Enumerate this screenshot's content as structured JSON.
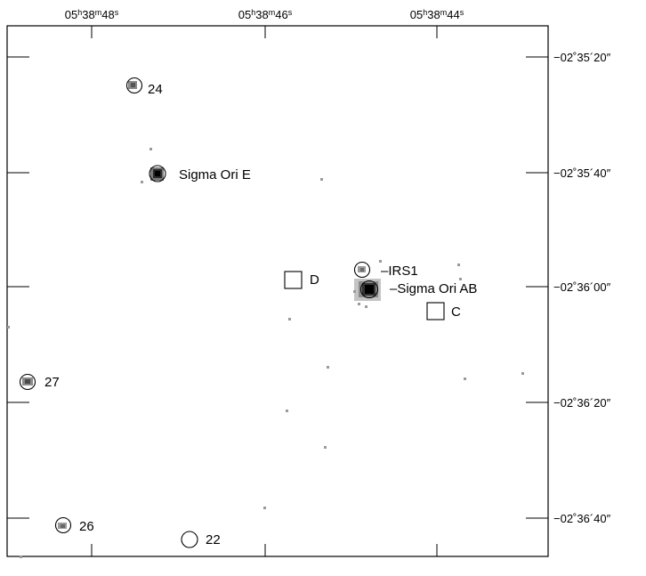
{
  "ra_ticks": [
    {
      "h": "05",
      "m": "38",
      "s": "48"
    },
    {
      "h": "05",
      "m": "38",
      "s": "46"
    },
    {
      "h": "05",
      "m": "38",
      "s": "44"
    }
  ],
  "dec_ticks": [
    "−02˚35´20″",
    "−02˚35´40″",
    "−02˚36´00″",
    "−02˚36´20″",
    "−02˚36´40″"
  ],
  "objects": [
    {
      "id": "24",
      "label": "24",
      "marker": "circle"
    },
    {
      "id": "sigma-ori-e",
      "label": "Sigma Ori E",
      "marker": "circle"
    },
    {
      "id": "irs1",
      "label": "–IRS1",
      "marker": "circle"
    },
    {
      "id": "sigma-ori-ab",
      "label": "–Sigma Ori AB",
      "marker": "circle"
    },
    {
      "id": "d",
      "label": "D",
      "marker": "square"
    },
    {
      "id": "c",
      "label": "C",
      "marker": "square"
    },
    {
      "id": "27",
      "label": "27",
      "marker": "circle"
    },
    {
      "id": "26",
      "label": "26",
      "marker": "circle"
    },
    {
      "id": "22",
      "label": "22",
      "marker": "circle"
    }
  ]
}
